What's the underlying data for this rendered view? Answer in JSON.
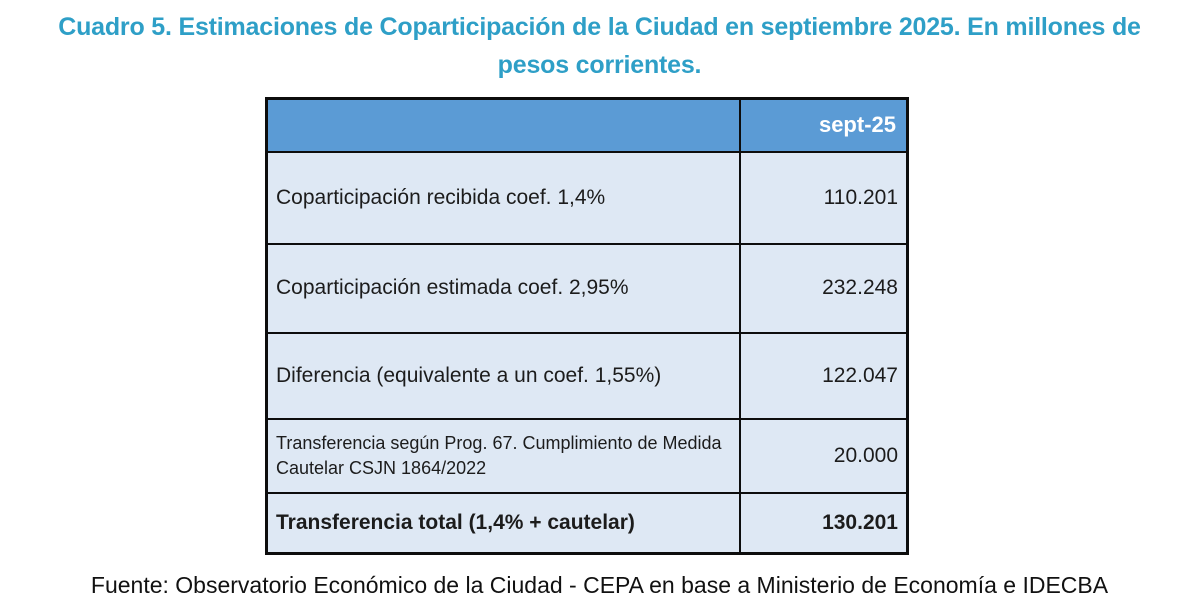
{
  "title": "Cuadro 5. Estimaciones de Coparticipación de la Ciudad en septiembre 2025. En millones de pesos corrientes.",
  "table": {
    "header": {
      "period": "sept-25"
    },
    "rows": [
      {
        "label": "Coparticipación recibida coef. 1,4%",
        "value": "110.201"
      },
      {
        "label": "Coparticipación estimada coef. 2,95%",
        "value": "232.248"
      },
      {
        "label": "Diferencia (equivalente a un coef. 1,55%)",
        "value": "122.047"
      },
      {
        "label": "Transferencia según Prog. 67. Cumplimiento de Medida Cautelar CSJN 1864/2022",
        "value": "20.000"
      },
      {
        "label": "Transferencia total (1,4% + cautelar)",
        "value": "130.201"
      }
    ]
  },
  "footer": "Fuente: Observatorio Económico de la Ciudad - CEPA en base a Ministerio de Economía e IDECBA",
  "colors": {
    "title_text": "#2E9FC7",
    "header_bg": "#5B9BD5",
    "row_bg": "#DEE8F4",
    "border": "#0D0D0D"
  }
}
